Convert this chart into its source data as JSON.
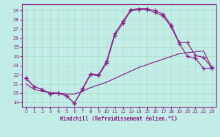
{
  "xlabel": "Windchill (Refroidissement éolien,°C)",
  "bg_color": "#c2ece6",
  "line_color": "#882288",
  "grid_color": "#aaddcc",
  "xlim": [
    -0.5,
    23.5
  ],
  "ylim": [
    18.5,
    29.7
  ],
  "xticks": [
    0,
    1,
    2,
    3,
    4,
    5,
    6,
    7,
    8,
    9,
    10,
    11,
    12,
    13,
    14,
    15,
    16,
    17,
    18,
    19,
    20,
    21,
    22,
    23
  ],
  "yticks": [
    19,
    20,
    21,
    22,
    23,
    24,
    25,
    26,
    27,
    28,
    29
  ],
  "line1_x": [
    0,
    1,
    2,
    3,
    4,
    5,
    6,
    7,
    8,
    9,
    10,
    11,
    12,
    13,
    14,
    15,
    16,
    17,
    18,
    19,
    20,
    21,
    22,
    23
  ],
  "line1_y": [
    21.6,
    20.7,
    20.4,
    19.9,
    20.0,
    19.7,
    18.9,
    20.5,
    22.1,
    22.0,
    23.5,
    26.5,
    27.8,
    29.1,
    29.2,
    29.2,
    29.0,
    28.6,
    27.4,
    25.5,
    25.5,
    24.1,
    23.9,
    22.8
  ],
  "line2_x": [
    0,
    1,
    2,
    3,
    4,
    5,
    6,
    7,
    8,
    9,
    10,
    11,
    12,
    13,
    14,
    15,
    16,
    17,
    18,
    19,
    20,
    21,
    22,
    23
  ],
  "line2_y": [
    21.6,
    20.7,
    20.4,
    19.9,
    20.0,
    19.7,
    18.9,
    20.4,
    22.0,
    21.9,
    23.3,
    26.3,
    27.6,
    29.0,
    29.1,
    29.1,
    28.8,
    28.4,
    27.2,
    25.4,
    24.0,
    23.8,
    22.7,
    22.7
  ],
  "line3_x": [
    0,
    1,
    2,
    3,
    4,
    5,
    6,
    7,
    8,
    9,
    10,
    11,
    12,
    13,
    14,
    15,
    16,
    17,
    18,
    19,
    20,
    21,
    22,
    23
  ],
  "line3_y": [
    21.0,
    20.4,
    20.2,
    20.1,
    20.0,
    19.9,
    19.9,
    20.2,
    20.6,
    20.9,
    21.2,
    21.6,
    22.0,
    22.4,
    22.8,
    23.1,
    23.4,
    23.7,
    24.0,
    24.3,
    24.4,
    24.5,
    24.6,
    22.8
  ]
}
